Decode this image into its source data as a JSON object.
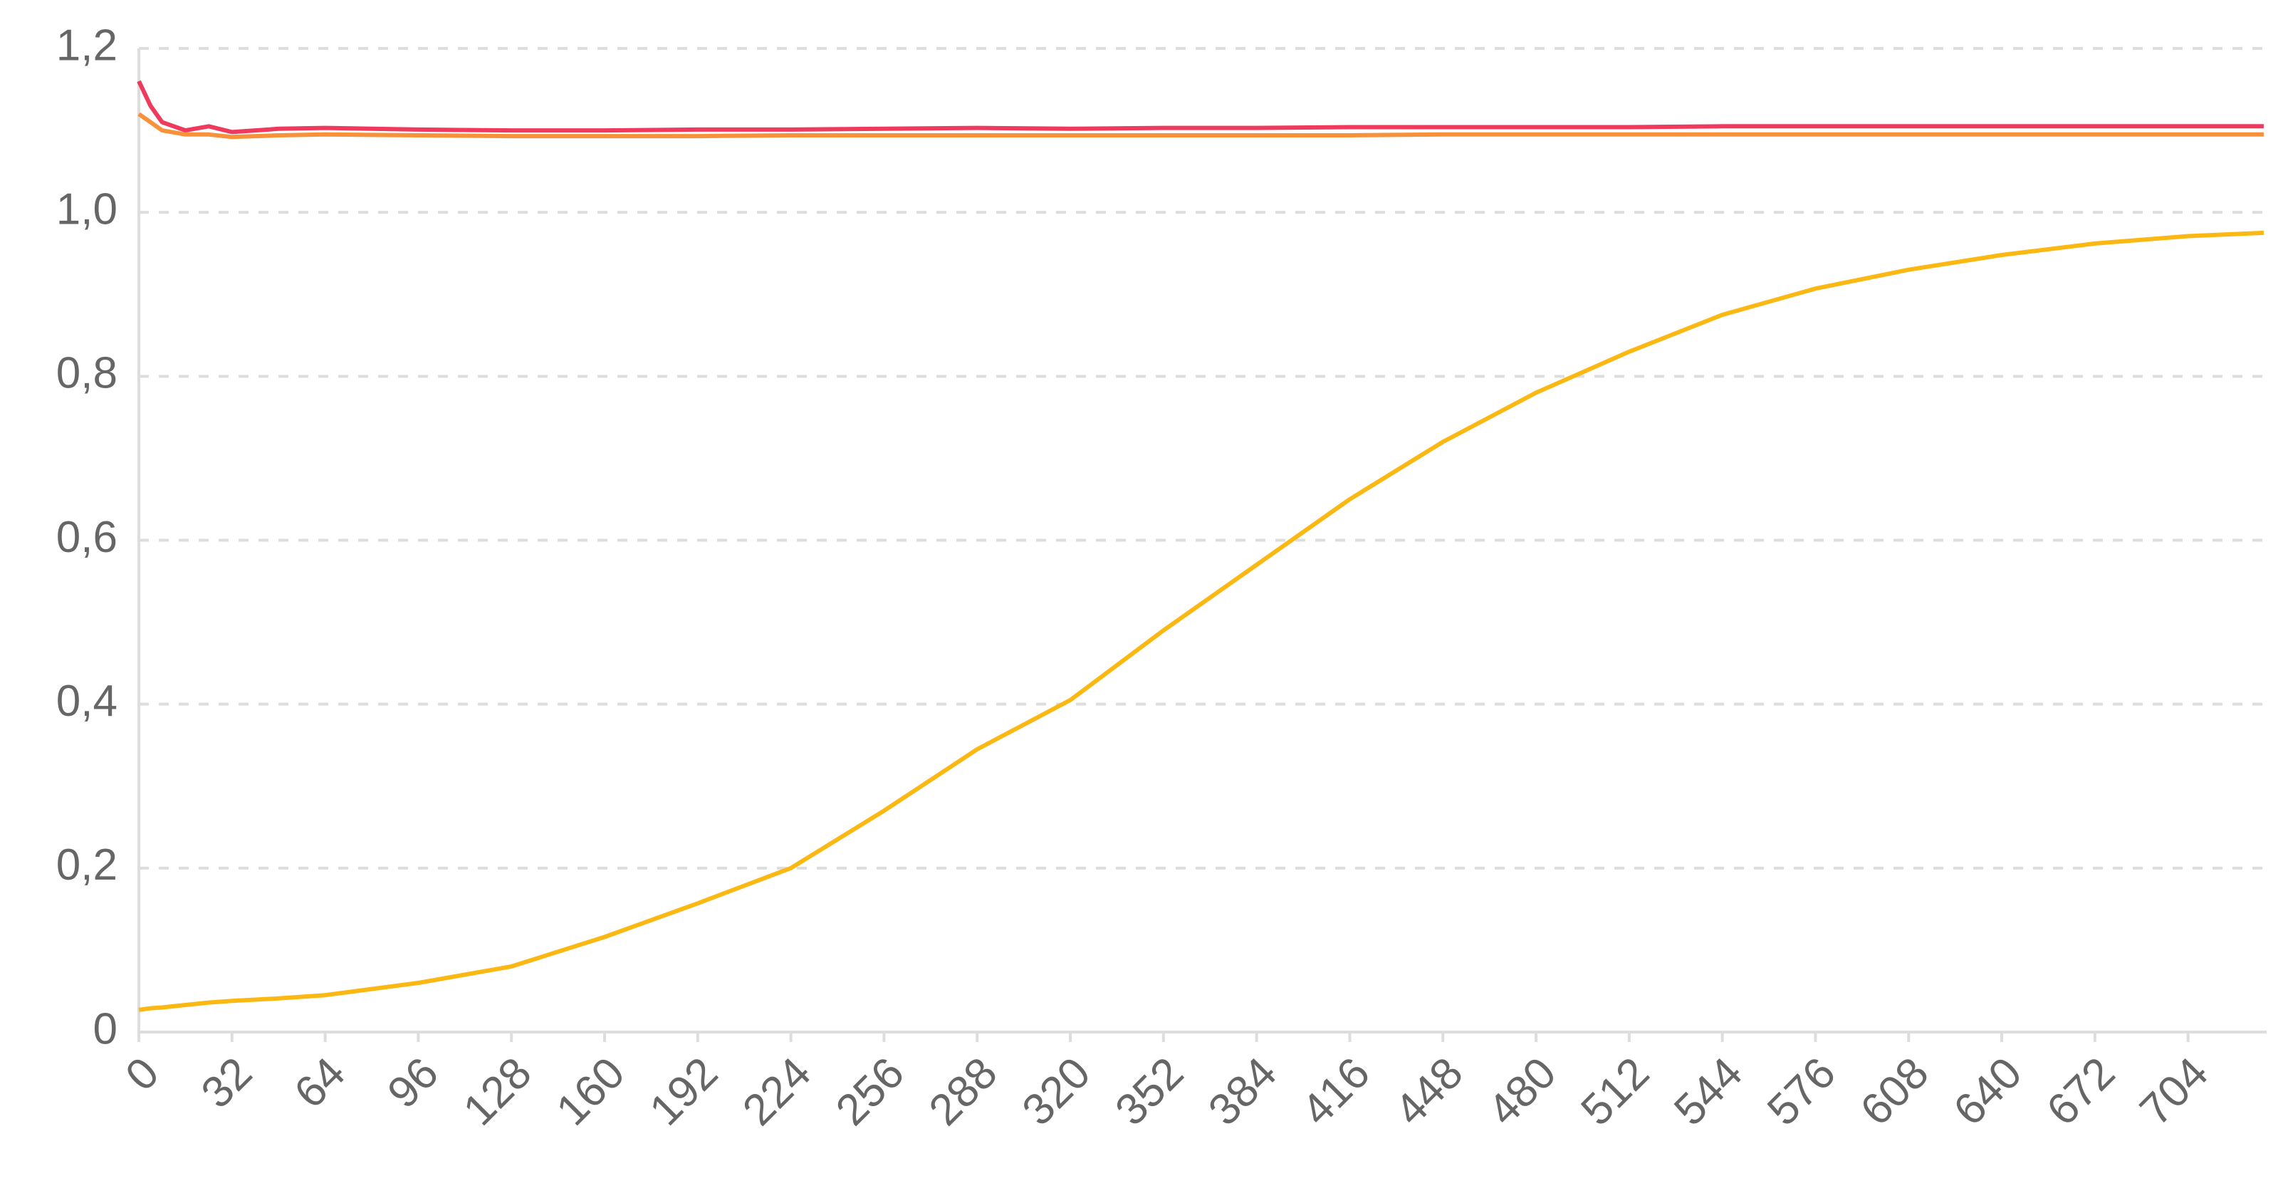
{
  "chart_data": {
    "type": "line",
    "x": [
      0,
      4,
      8,
      16,
      24,
      32,
      48,
      64,
      96,
      128,
      160,
      192,
      224,
      256,
      288,
      320,
      352,
      384,
      416,
      448,
      480,
      512,
      544,
      576,
      608,
      640,
      672,
      704,
      730
    ],
    "series": [
      {
        "color": "#ef3a5d",
        "values": [
          1.16,
          1.13,
          1.11,
          1.1,
          1.105,
          1.098,
          1.102,
          1.103,
          1.101,
          1.1,
          1.1,
          1.101,
          1.101,
          1.102,
          1.103,
          1.102,
          1.103,
          1.103,
          1.104,
          1.104,
          1.104,
          1.104,
          1.105,
          1.105,
          1.105,
          1.105,
          1.105,
          1.105,
          1.105
        ]
      },
      {
        "color": "#f7923a",
        "values": [
          1.12,
          1.11,
          1.1,
          1.095,
          1.095,
          1.092,
          1.094,
          1.095,
          1.094,
          1.093,
          1.093,
          1.093,
          1.094,
          1.094,
          1.094,
          1.094,
          1.094,
          1.094,
          1.094,
          1.095,
          1.095,
          1.095,
          1.095,
          1.095,
          1.095,
          1.095,
          1.095,
          1.095,
          1.095
        ]
      },
      {
        "color": "#fbb812",
        "values": [
          0.027,
          0.029,
          0.03,
          0.033,
          0.036,
          0.038,
          0.041,
          0.045,
          0.06,
          0.08,
          0.116,
          0.157,
          0.2,
          0.27,
          0.345,
          0.405,
          0.49,
          0.57,
          0.65,
          0.72,
          0.78,
          0.83,
          0.875,
          0.907,
          0.93,
          0.948,
          0.962,
          0.971,
          0.975
        ]
      }
    ],
    "xlim": [
      0,
      731
    ],
    "xticks": [
      0,
      32,
      64,
      96,
      128,
      160,
      192,
      224,
      256,
      288,
      320,
      352,
      384,
      416,
      448,
      480,
      512,
      544,
      576,
      608,
      640,
      672,
      704
    ],
    "ylim": [
      0,
      1.2
    ],
    "yticks": [
      0,
      {
        "value": 0.2,
        "label": "0,2"
      },
      {
        "value": 0.4,
        "label": "0,4"
      },
      {
        "value": 0.6,
        "label": "0,6"
      },
      {
        "value": 0.8,
        "label": "0,8"
      },
      {
        "value": 1.0,
        "label": "1,0"
      },
      {
        "value": 1.2,
        "label": "1,2"
      }
    ],
    "grid": true
  }
}
